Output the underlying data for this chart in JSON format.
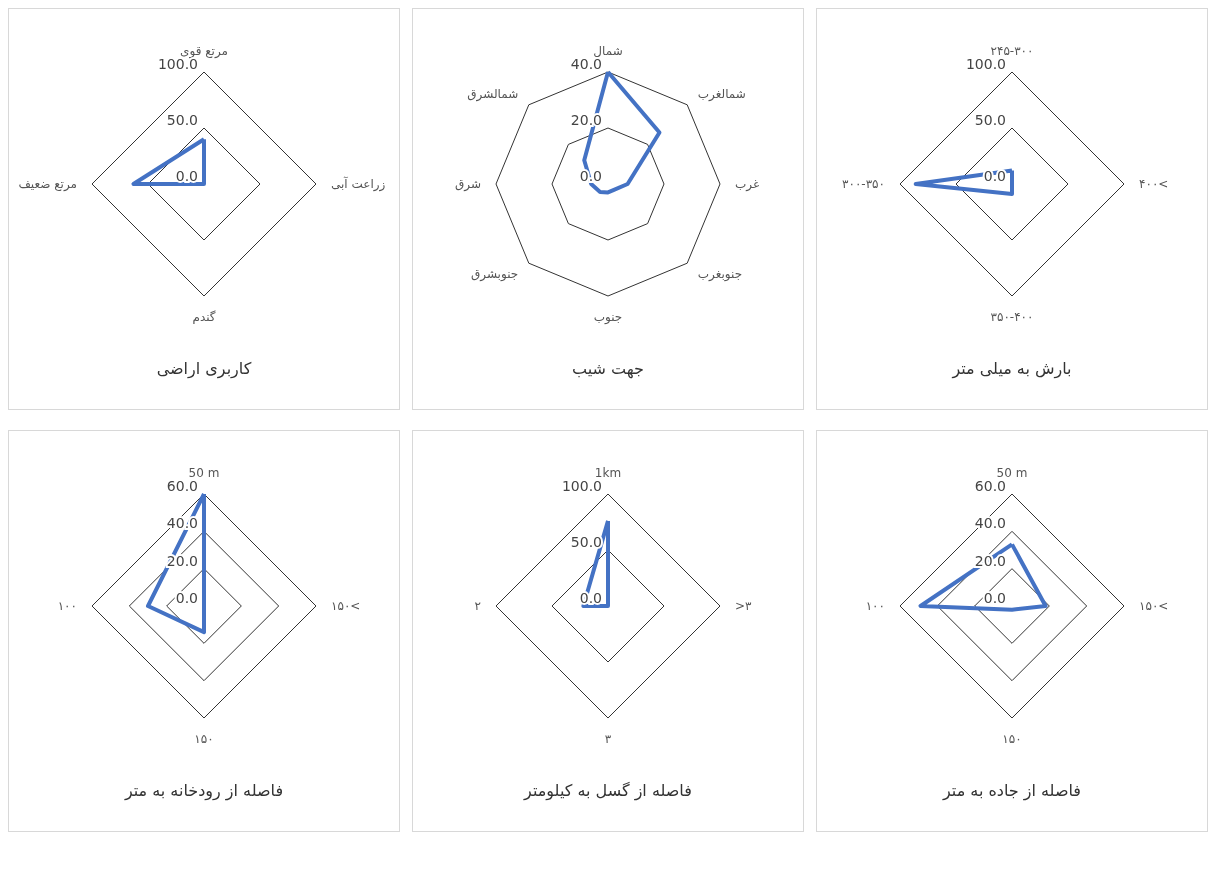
{
  "chart_data": [
    {
      "type": "radar",
      "title": "کاربری اراضی",
      "categories": [
        "مرتع قوی",
        "زراعت آبی",
        "گندم",
        "مرتع ضعیف"
      ],
      "series": [
        {
          "color": "#4472c4",
          "values": [
            40,
            0,
            0,
            63
          ]
        }
      ],
      "ylim": [
        0,
        100
      ],
      "yticks": [
        {
          "value": 0,
          "label": "0.0"
        },
        {
          "value": 50,
          "label": "50.0"
        },
        {
          "value": 100,
          "label": "100.0"
        }
      ],
      "grid": true,
      "marker": "none"
    },
    {
      "type": "radar",
      "title": "جهت شیب",
      "categories": [
        "شمال",
        "شمالغرب",
        "غرب",
        "جنوبغرب",
        "جنوب",
        "جنوبشرق",
        "شرق",
        "شمالشرق"
      ],
      "series": [
        {
          "color": "#4472c4",
          "values": [
            40,
            26,
            7,
            3,
            3,
            4,
            6,
            12
          ]
        }
      ],
      "ylim": [
        0,
        40
      ],
      "yticks": [
        {
          "value": 0,
          "label": "0.0"
        },
        {
          "value": 20,
          "label": "20.0"
        },
        {
          "value": 40,
          "label": "40.0"
        }
      ],
      "grid": true,
      "marker": "none"
    },
    {
      "type": "radar",
      "title": "بارش به میلی متر",
      "categories": [
        "۲۴۵-۳۰۰",
        "۴۰۰<",
        "۳۵۰-۴۰۰",
        "۳۰۰-۳۵۰"
      ],
      "series": [
        {
          "color": "#4472c4",
          "values": [
            12,
            0,
            9,
            86
          ]
        }
      ],
      "ylim": [
        0,
        100
      ],
      "yticks": [
        {
          "value": 0,
          "label": "0.0"
        },
        {
          "value": 50,
          "label": "50.0"
        },
        {
          "value": 100,
          "label": "100.0"
        }
      ],
      "grid": true,
      "marker": "none"
    },
    {
      "type": "radar",
      "title": "فاصله از رودخانه به متر",
      "categories": [
        "50 m",
        "۱۵۰<",
        "۱۵۰",
        "۱۰۰"
      ],
      "series": [
        {
          "color": "#4472c4",
          "values": [
            60,
            0,
            14,
            30
          ]
        }
      ],
      "ylim": [
        0,
        60
      ],
      "yticks": [
        {
          "value": 0,
          "label": "0.0"
        },
        {
          "value": 20,
          "label": "20.0"
        },
        {
          "value": 40,
          "label": "40.0"
        },
        {
          "value": 60,
          "label": "60.0"
        }
      ],
      "grid": true,
      "marker": "none"
    },
    {
      "type": "radar",
      "title": "فاصله از گسل به کیلومتر",
      "categories": [
        "1km",
        ">۳",
        "۳",
        "۲"
      ],
      "series": [
        {
          "color": "#4472c4",
          "values": [
            76,
            0,
            0,
            22
          ]
        }
      ],
      "ylim": [
        0,
        100
      ],
      "yticks": [
        {
          "value": 0,
          "label": "0.0"
        },
        {
          "value": 50,
          "label": "50.0"
        },
        {
          "value": 100,
          "label": "100.0"
        }
      ],
      "grid": true,
      "marker": "none"
    },
    {
      "type": "radar",
      "title": "فاصله از جاده به متر",
      "categories": [
        "50 m",
        "۱۵۰<",
        "۱۵۰",
        "۱۰۰"
      ],
      "series": [
        {
          "color": "#4472c4",
          "values": [
            33,
            18,
            2,
            49
          ]
        }
      ],
      "ylim": [
        0,
        60
      ],
      "yticks": [
        {
          "value": 0,
          "label": "0.0"
        },
        {
          "value": 20,
          "label": "20.0"
        },
        {
          "value": 40,
          "label": "40.0"
        },
        {
          "value": 60,
          "label": "60.0"
        }
      ],
      "grid": true,
      "marker": "none"
    }
  ]
}
